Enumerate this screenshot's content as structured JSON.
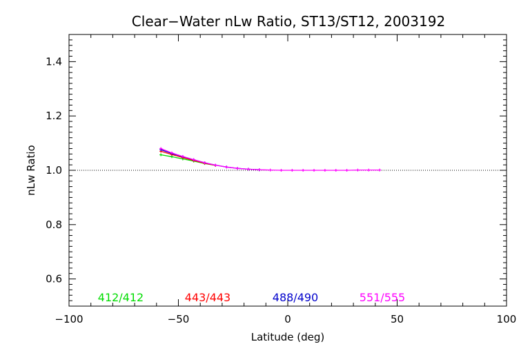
{
  "chart_data": {
    "type": "line",
    "title": "Clear−Water nLw Ratio, ST13/ST12, 2003192",
    "xlabel": "Latitude (deg)",
    "ylabel": "nLw Ratio",
    "xlim": [
      -100,
      100
    ],
    "ylim": [
      0.5,
      1.5
    ],
    "xticks": [
      -100,
      -50,
      0,
      50,
      100
    ],
    "yticks": [
      0.6,
      0.8,
      1.0,
      1.2,
      1.4
    ],
    "xtick_labels": [
      "−100",
      "−50",
      "0",
      "50",
      "100"
    ],
    "ytick_labels": [
      "0.6",
      "0.8",
      "1.0",
      "1.2",
      "1.4"
    ],
    "reference_line": 1.0,
    "grid": false,
    "legend_position": "bottom-inside",
    "series": [
      {
        "name": "412/412",
        "color": "#00dd00",
        "x": [
          -58,
          -53,
          -48,
          -43,
          -38,
          -33
        ],
        "y": [
          1.057,
          1.05,
          1.042,
          1.034,
          1.025,
          1.018
        ]
      },
      {
        "name": "443/443",
        "color": "#ff0000",
        "x": [
          -58,
          -53,
          -48,
          -43,
          -38,
          -33
        ],
        "y": [
          1.07,
          1.058,
          1.047,
          1.036,
          1.026,
          1.018
        ]
      },
      {
        "name": "488/490",
        "color": "#0000cc",
        "x": [
          -58,
          -53,
          -48,
          -43,
          -38,
          -33,
          -28,
          -23,
          -18,
          -13
        ],
        "y": [
          1.076,
          1.062,
          1.05,
          1.039,
          1.028,
          1.019,
          1.012,
          1.007,
          1.004,
          1.002
        ]
      },
      {
        "name": "551/555",
        "color": "#ff00ff",
        "x": [
          -58,
          -53,
          -48,
          -43,
          -38,
          -33,
          -28,
          -23,
          -18,
          -13,
          -8,
          -3,
          2,
          7,
          12,
          17,
          22,
          27,
          32,
          37,
          42
        ],
        "y": [
          1.08,
          1.064,
          1.051,
          1.039,
          1.028,
          1.019,
          1.012,
          1.007,
          1.004,
          1.002,
          1.001,
          1.0,
          1.0,
          1.0,
          1.0,
          1.0,
          1.0,
          1.0,
          1.001,
          1.001,
          1.001
        ]
      }
    ]
  }
}
